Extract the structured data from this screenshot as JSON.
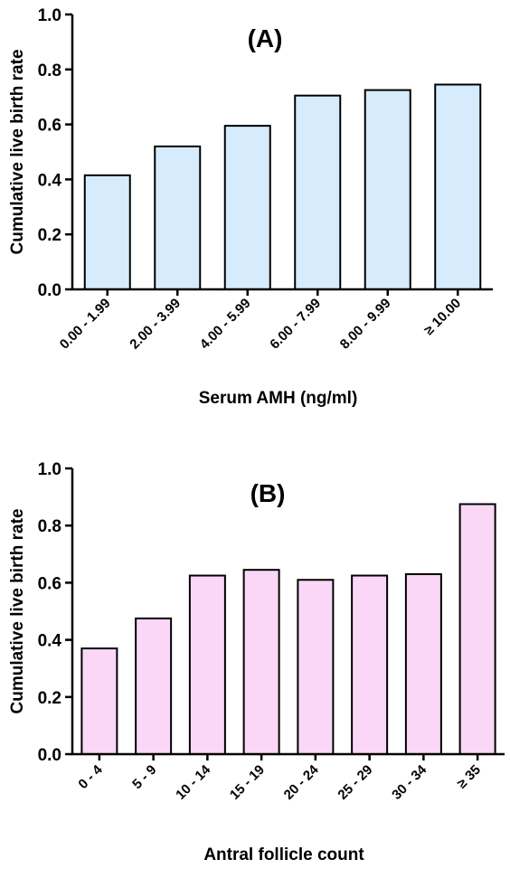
{
  "chart_data": [
    {
      "type": "bar",
      "annotation": "(A)",
      "categories": [
        "0.00 - 1.99",
        "2.00 - 3.99",
        "4.00 - 5.99",
        "6.00 - 7.99",
        "8.00 - 9.99",
        "≥ 10.00"
      ],
      "values": [
        0.415,
        0.52,
        0.595,
        0.705,
        0.725,
        0.745
      ],
      "xlabel": "Serum AMH (ng/ml)",
      "ylabel": "Cumulative live birth rate",
      "ylim": [
        0,
        1.0
      ],
      "yticks": [
        "0.0",
        "0.2",
        "0.4",
        "0.6",
        "0.8",
        "1.0"
      ],
      "bar_color": "#d6ecfc",
      "grid": false
    },
    {
      "type": "bar",
      "annotation": "(B)",
      "categories": [
        "0 - 4",
        "5 - 9",
        "10 - 14",
        "15 - 19",
        "20 - 24",
        "25 - 29",
        "30 - 34",
        "≥ 35"
      ],
      "values": [
        0.37,
        0.475,
        0.625,
        0.645,
        0.61,
        0.625,
        0.63,
        0.875
      ],
      "xlabel": "Antral follicle count",
      "ylabel": "Cumulative live birth rate",
      "ylim": [
        0,
        1.0
      ],
      "yticks": [
        "0.0",
        "0.2",
        "0.4",
        "0.6",
        "0.8",
        "1.0"
      ],
      "bar_color": "#fad7f6",
      "grid": false
    }
  ]
}
